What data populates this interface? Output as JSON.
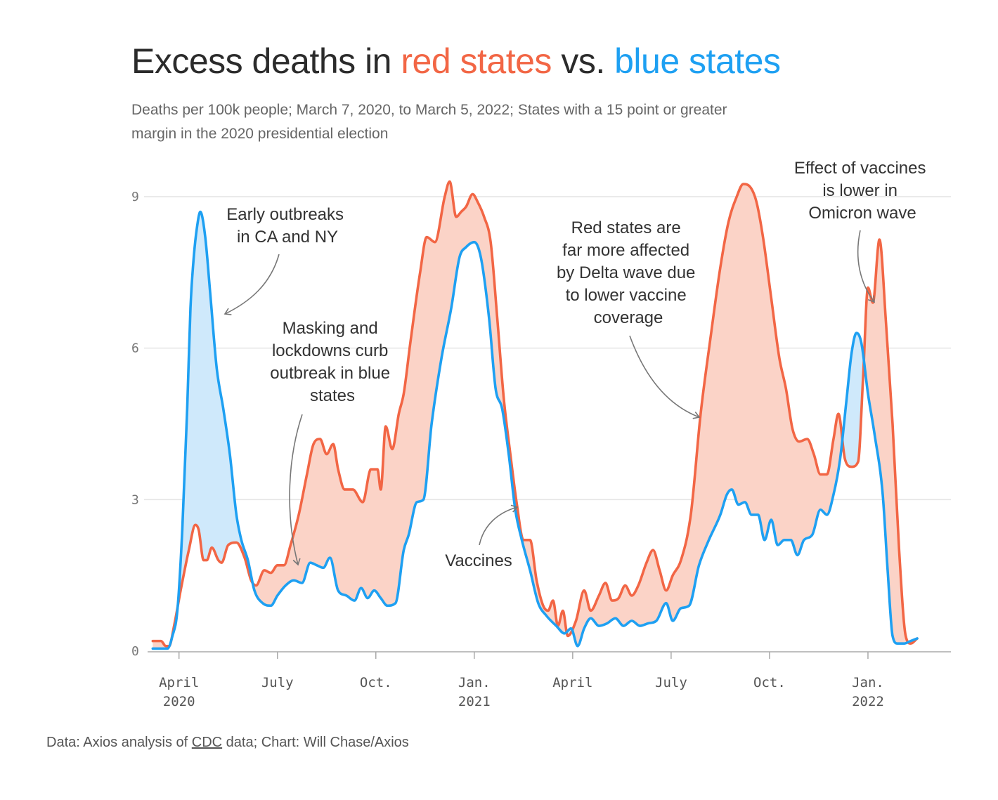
{
  "title": {
    "part1": "Excess deaths in ",
    "red": "red states",
    "part2": " vs. ",
    "blue": "blue states"
  },
  "subtitle": "Deaths per 100k people; March 7, 2020, to March 5, 2022; States with a 15 point or greater margin in the 2020 presidential election",
  "footer": {
    "prefix": "Data: Axios analysis of ",
    "link": "CDC",
    "suffix": " data; Chart: Will Chase/Axios"
  },
  "colors": {
    "red": "#f26645",
    "blue": "#1ea0f2",
    "red_fill": "#fbd3c7",
    "blue_fill": "#cfe9fb",
    "grid": "#e4e4e4",
    "arrow": "#777777"
  },
  "chart_data": {
    "type": "area",
    "ylim": [
      0,
      9
    ],
    "yticks": [
      0,
      3,
      6,
      9
    ],
    "xlim": [
      -0.85,
      23.25
    ],
    "x_unit": "months since April 1, 2020",
    "xticks": [
      {
        "x": 0,
        "label": "April",
        "sublabel": "2020"
      },
      {
        "x": 3,
        "label": "July",
        "sublabel": ""
      },
      {
        "x": 6,
        "label": "Oct.",
        "sublabel": ""
      },
      {
        "x": 9,
        "label": "Jan.",
        "sublabel": "2021"
      },
      {
        "x": 12,
        "label": "April",
        "sublabel": ""
      },
      {
        "x": 15,
        "label": "July",
        "sublabel": ""
      },
      {
        "x": 18,
        "label": "Oct.",
        "sublabel": ""
      },
      {
        "x": 21,
        "label": "Jan.",
        "sublabel": "2022"
      }
    ],
    "series": [
      {
        "name": "Red states",
        "points": [
          [
            -0.8,
            0.2
          ],
          [
            -0.55,
            0.2
          ],
          [
            -0.4,
            0.1
          ],
          [
            -0.3,
            0.1
          ],
          [
            -0.15,
            0.5
          ],
          [
            0.05,
            1.2
          ],
          [
            0.3,
            2
          ],
          [
            0.5,
            2.5
          ],
          [
            0.6,
            2.4
          ],
          [
            0.75,
            1.8
          ],
          [
            0.85,
            1.8
          ],
          [
            1,
            2.05
          ],
          [
            1.2,
            1.8
          ],
          [
            1.3,
            1.75
          ],
          [
            1.5,
            2.1
          ],
          [
            1.75,
            2.15
          ],
          [
            2,
            1.85
          ],
          [
            2.2,
            1.4
          ],
          [
            2.35,
            1.3
          ],
          [
            2.6,
            1.6
          ],
          [
            2.8,
            1.55
          ],
          [
            3,
            1.7
          ],
          [
            3.2,
            1.7
          ],
          [
            3.4,
            2.1
          ],
          [
            3.65,
            2.7
          ],
          [
            3.9,
            3.5
          ],
          [
            4.1,
            4.1
          ],
          [
            4.3,
            4.2
          ],
          [
            4.5,
            3.9
          ],
          [
            4.7,
            4.1
          ],
          [
            4.85,
            3.6
          ],
          [
            5.05,
            3.2
          ],
          [
            5.3,
            3.2
          ],
          [
            5.6,
            2.95
          ],
          [
            5.85,
            3.6
          ],
          [
            6.05,
            3.6
          ],
          [
            6.15,
            3.2
          ],
          [
            6.3,
            4.45
          ],
          [
            6.5,
            4.0
          ],
          [
            6.7,
            4.7
          ],
          [
            6.85,
            5.1
          ],
          [
            7.05,
            6.1
          ],
          [
            7.35,
            7.5
          ],
          [
            7.55,
            8.2
          ],
          [
            7.8,
            8.1
          ],
          [
            8.1,
            9.0
          ],
          [
            8.25,
            9.3
          ],
          [
            8.45,
            8.6
          ],
          [
            8.6,
            8.7
          ],
          [
            8.75,
            8.8
          ],
          [
            8.95,
            9.05
          ],
          [
            9.1,
            8.9
          ],
          [
            9.3,
            8.6
          ],
          [
            9.5,
            8.1
          ],
          [
            9.7,
            6.6
          ],
          [
            9.9,
            5.0
          ],
          [
            10.1,
            3.9
          ],
          [
            10.3,
            2.9
          ],
          [
            10.5,
            2.2
          ],
          [
            10.7,
            2.2
          ],
          [
            10.9,
            1.4
          ],
          [
            11.1,
            0.9
          ],
          [
            11.25,
            0.8
          ],
          [
            11.4,
            1.0
          ],
          [
            11.55,
            0.5
          ],
          [
            11.7,
            0.8
          ],
          [
            11.85,
            0.3
          ],
          [
            12.1,
            0.6
          ],
          [
            12.35,
            1.2
          ],
          [
            12.55,
            0.8
          ],
          [
            12.8,
            1.1
          ],
          [
            13,
            1.35
          ],
          [
            13.2,
            1.0
          ],
          [
            13.4,
            1.05
          ],
          [
            13.6,
            1.3
          ],
          [
            13.8,
            1.1
          ],
          [
            14,
            1.3
          ],
          [
            14.25,
            1.75
          ],
          [
            14.45,
            2.0
          ],
          [
            14.65,
            1.6
          ],
          [
            14.85,
            1.2
          ],
          [
            15.05,
            1.5
          ],
          [
            15.3,
            1.8
          ],
          [
            15.6,
            2.7
          ],
          [
            15.9,
            4.7
          ],
          [
            16.2,
            6.2
          ],
          [
            16.5,
            7.6
          ],
          [
            16.75,
            8.5
          ],
          [
            17,
            9.0
          ],
          [
            17.2,
            9.25
          ],
          [
            17.4,
            9.2
          ],
          [
            17.6,
            8.9
          ],
          [
            17.8,
            8.2
          ],
          [
            18.05,
            7.0
          ],
          [
            18.3,
            5.8
          ],
          [
            18.5,
            5.2
          ],
          [
            18.7,
            4.4
          ],
          [
            18.9,
            4.15
          ],
          [
            19.15,
            4.2
          ],
          [
            19.35,
            3.9
          ],
          [
            19.55,
            3.5
          ],
          [
            19.75,
            3.5
          ],
          [
            19.95,
            4.2
          ],
          [
            20.1,
            4.7
          ],
          [
            20.3,
            3.8
          ],
          [
            20.5,
            3.65
          ],
          [
            20.7,
            3.75
          ],
          [
            20.85,
            5.4
          ],
          [
            21.0,
            7.2
          ],
          [
            21.15,
            6.9
          ],
          [
            21.35,
            8.15
          ],
          [
            21.55,
            6.5
          ],
          [
            21.75,
            4.5
          ],
          [
            21.95,
            2.0
          ],
          [
            22.15,
            0.3
          ],
          [
            22.3,
            0.15
          ],
          [
            22.5,
            0.25
          ]
        ]
      },
      {
        "name": "Blue states",
        "points": [
          [
            -0.8,
            0.05
          ],
          [
            -0.55,
            0.05
          ],
          [
            -0.35,
            0.05
          ],
          [
            -0.2,
            0.3
          ],
          [
            -0.05,
            0.8
          ],
          [
            0.1,
            2.4
          ],
          [
            0.25,
            4.8
          ],
          [
            0.35,
            6.8
          ],
          [
            0.45,
            7.8
          ],
          [
            0.55,
            8.4
          ],
          [
            0.65,
            8.7
          ],
          [
            0.8,
            8.2
          ],
          [
            0.95,
            7.1
          ],
          [
            1.15,
            5.6
          ],
          [
            1.35,
            4.8
          ],
          [
            1.55,
            3.9
          ],
          [
            1.75,
            2.7
          ],
          [
            1.9,
            2.2
          ],
          [
            2.1,
            1.8
          ],
          [
            2.3,
            1.2
          ],
          [
            2.55,
            0.95
          ],
          [
            2.8,
            0.9
          ],
          [
            3.0,
            1.1
          ],
          [
            3.25,
            1.3
          ],
          [
            3.5,
            1.4
          ],
          [
            3.75,
            1.35
          ],
          [
            4.0,
            1.75
          ],
          [
            4.2,
            1.7
          ],
          [
            4.4,
            1.65
          ],
          [
            4.6,
            1.85
          ],
          [
            4.85,
            1.2
          ],
          [
            5.1,
            1.1
          ],
          [
            5.35,
            1.0
          ],
          [
            5.55,
            1.25
          ],
          [
            5.75,
            1.05
          ],
          [
            5.95,
            1.2
          ],
          [
            6.15,
            1.05
          ],
          [
            6.35,
            0.9
          ],
          [
            6.6,
            0.95
          ],
          [
            6.85,
            2.0
          ],
          [
            7.0,
            2.3
          ],
          [
            7.25,
            2.95
          ],
          [
            7.45,
            3.0
          ],
          [
            7.7,
            4.5
          ],
          [
            8.0,
            5.8
          ],
          [
            8.3,
            6.8
          ],
          [
            8.55,
            7.8
          ],
          [
            8.75,
            8.0
          ],
          [
            9.0,
            8.1
          ],
          [
            9.2,
            7.8
          ],
          [
            9.45,
            6.6
          ],
          [
            9.65,
            5.2
          ],
          [
            9.85,
            4.8
          ],
          [
            10.05,
            3.9
          ],
          [
            10.25,
            2.8
          ],
          [
            10.45,
            2.2
          ],
          [
            10.7,
            1.6
          ],
          [
            10.95,
            0.95
          ],
          [
            11.2,
            0.7
          ],
          [
            11.5,
            0.5
          ],
          [
            11.75,
            0.35
          ],
          [
            11.95,
            0.45
          ],
          [
            12.15,
            0.1
          ],
          [
            12.35,
            0.45
          ],
          [
            12.55,
            0.65
          ],
          [
            12.8,
            0.5
          ],
          [
            13.05,
            0.55
          ],
          [
            13.3,
            0.65
          ],
          [
            13.55,
            0.5
          ],
          [
            13.8,
            0.6
          ],
          [
            14.05,
            0.5
          ],
          [
            14.3,
            0.55
          ],
          [
            14.55,
            0.6
          ],
          [
            14.85,
            0.95
          ],
          [
            15.05,
            0.6
          ],
          [
            15.3,
            0.85
          ],
          [
            15.55,
            0.9
          ],
          [
            15.85,
            1.7
          ],
          [
            16.15,
            2.2
          ],
          [
            16.5,
            2.7
          ],
          [
            16.7,
            3.1
          ],
          [
            16.85,
            3.2
          ],
          [
            17.05,
            2.9
          ],
          [
            17.25,
            2.95
          ],
          [
            17.45,
            2.7
          ],
          [
            17.65,
            2.7
          ],
          [
            17.85,
            2.2
          ],
          [
            18.05,
            2.6
          ],
          [
            18.25,
            2.1
          ],
          [
            18.45,
            2.2
          ],
          [
            18.65,
            2.2
          ],
          [
            18.85,
            1.9
          ],
          [
            19.05,
            2.2
          ],
          [
            19.3,
            2.3
          ],
          [
            19.55,
            2.8
          ],
          [
            19.75,
            2.7
          ],
          [
            19.95,
            3.1
          ],
          [
            20.15,
            3.8
          ],
          [
            20.35,
            5.0
          ],
          [
            20.5,
            5.9
          ],
          [
            20.65,
            6.3
          ],
          [
            20.8,
            6.1
          ],
          [
            21.0,
            5.1
          ],
          [
            21.2,
            4.3
          ],
          [
            21.45,
            3.1
          ],
          [
            21.6,
            1.6
          ],
          [
            21.75,
            0.3
          ],
          [
            21.9,
            0.15
          ],
          [
            22.1,
            0.15
          ],
          [
            22.3,
            0.2
          ],
          [
            22.5,
            0.25
          ]
        ]
      }
    ],
    "annotations": [
      {
        "lines": [
          "Early outbreaks",
          "in CA and NY"
        ]
      },
      {
        "lines": [
          "Masking and",
          "lockdowns curb",
          "outbreak in blue",
          "states"
        ]
      },
      {
        "lines": [
          "Vaccines"
        ]
      },
      {
        "lines": [
          "Red states are",
          "far more affected",
          "by Delta wave due",
          "to lower vaccine",
          "coverage"
        ]
      },
      {
        "lines": [
          "Effect of vaccines",
          "is lower in",
          "Omicron wave"
        ]
      }
    ]
  }
}
